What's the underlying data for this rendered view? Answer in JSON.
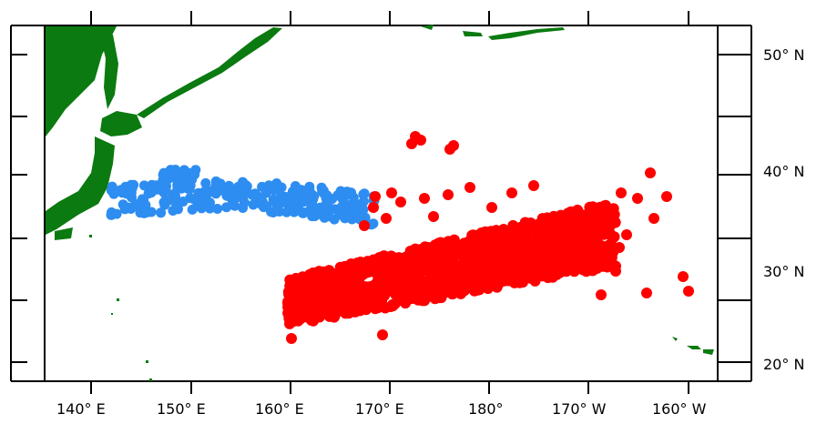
{
  "map": {
    "x_axis_labels": [
      "140° E",
      "150° E",
      "160° E",
      "170° E",
      "180°",
      "170° W",
      "160° W"
    ],
    "y_axis_labels": [
      "50° N",
      "40° N",
      "30° N",
      "20° N"
    ],
    "colors": {
      "land": "#0b7a10",
      "series_west": "#2e8df0",
      "series_east": "#ff0000",
      "frame": "#000000",
      "background": "#ffffff"
    }
  }
}
